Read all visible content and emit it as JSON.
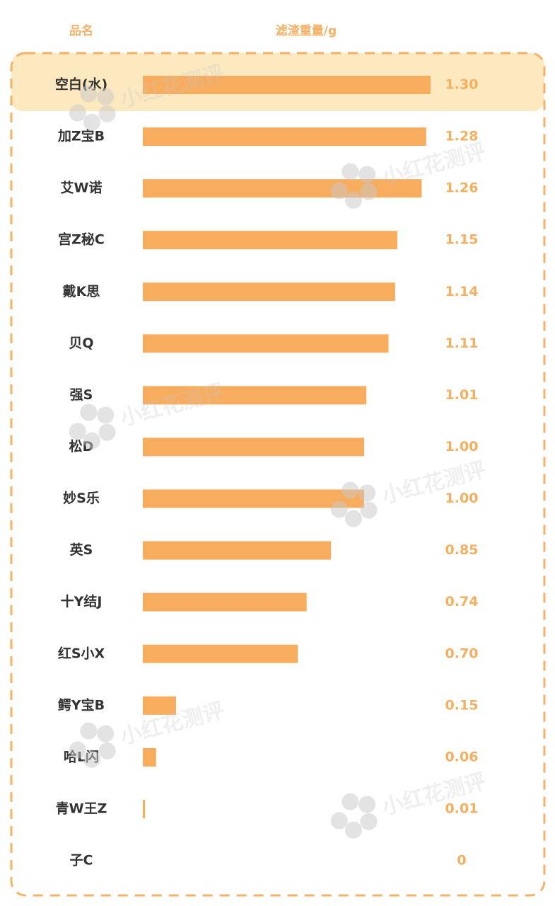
{
  "chart_data": {
    "type": "bar",
    "orientation": "horizontal",
    "columns": [
      "品名",
      "滤渣重量/g"
    ],
    "watermark": "小红花测评",
    "color": "#f8ad5e",
    "categories": [
      "空白(水)",
      "加Z宝B",
      "艾W诺",
      "宫Z秘C",
      "戴K思",
      "贝Q",
      "强S",
      "松D",
      "妙S乐",
      "英S",
      "十Y结J",
      "红S小X",
      "鳄Y宝B",
      "哈L闪",
      "青W王Z",
      "子C"
    ],
    "values": [
      1.3,
      1.28,
      1.26,
      1.15,
      1.14,
      1.11,
      1.01,
      1.0,
      1.0,
      0.85,
      0.74,
      0.7,
      0.15,
      0.06,
      0.01,
      0
    ],
    "value_labels": [
      "1.30",
      "1.28",
      "1.26",
      "1.15",
      "1.14",
      "1.11",
      "1.01",
      "1.00",
      "1.00",
      "0.85",
      "0.74",
      "0.70",
      "0.15",
      "0.06",
      "0.01",
      "0"
    ]
  }
}
